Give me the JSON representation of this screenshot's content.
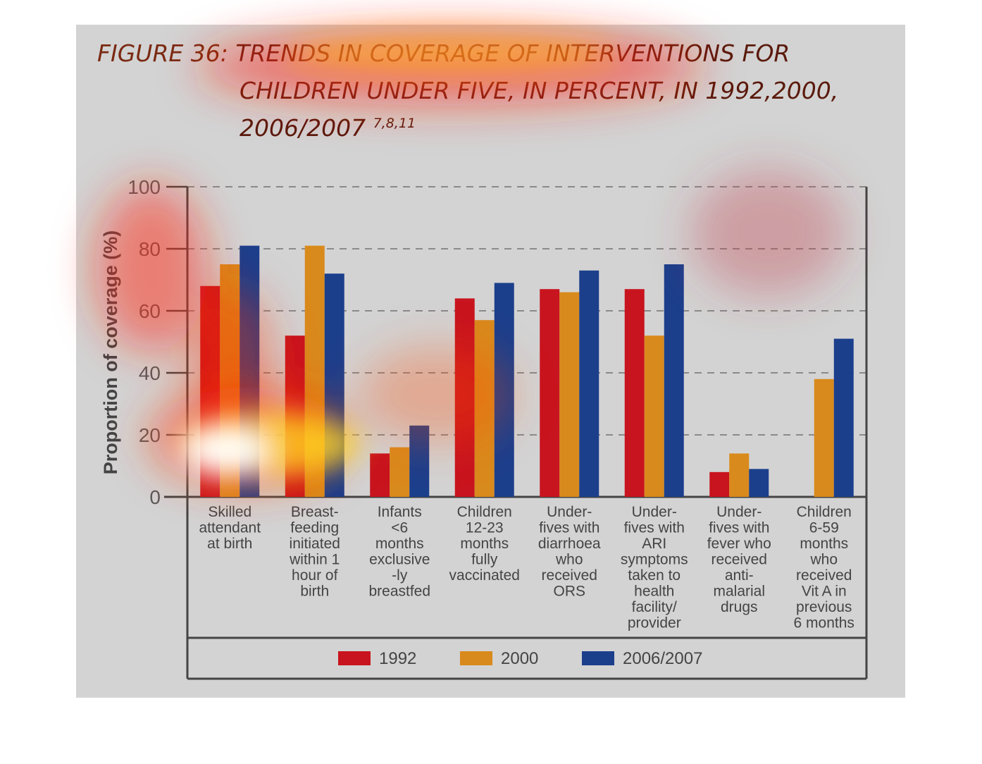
{
  "figure": {
    "label": "FIGURE 36:",
    "title_line1": "TRENDS IN COVERAGE OF INTERVENTIONS FOR",
    "title_line2": "CHILDREN UNDER FIVE, IN PERCENT, IN 1992,2000,",
    "title_line3": "2006/2007",
    "refs": "7,8,11"
  },
  "colors": {
    "s1992": "#c8141e",
    "s2000": "#d98a1c",
    "s2007": "#1c3f8c"
  },
  "chart_data": {
    "type": "bar",
    "ylabel": "Proportion of coverage (%)",
    "ylim": [
      0,
      100
    ],
    "yticks": [
      0,
      20,
      40,
      60,
      80,
      100
    ],
    "grid": true,
    "legend": "bottom",
    "categories": [
      [
        "Skilled",
        "attendant",
        "at birth"
      ],
      [
        "Breast-",
        "feeding",
        "initiated",
        "within 1",
        "hour of",
        "birth"
      ],
      [
        "Infants",
        "<6",
        "months",
        "exclusive",
        "-ly",
        "breastfed"
      ],
      [
        "Children",
        "12-23",
        "months",
        "fully",
        "vaccinated"
      ],
      [
        "Under-",
        "fives with",
        "diarrhoea",
        "who",
        "received",
        "ORS"
      ],
      [
        "Under-",
        "fives with",
        "ARI",
        "symptoms",
        "taken to",
        "health",
        "facility/",
        "provider"
      ],
      [
        "Under-",
        "fives with",
        "fever who",
        "received",
        "anti-",
        "malarial",
        "drugs"
      ],
      [
        "Children",
        "6-59",
        "months",
        "who",
        "received",
        "Vit A in",
        "previous",
        "6 months"
      ]
    ],
    "series": [
      {
        "name": "1992",
        "values": [
          68,
          52,
          14,
          64,
          67,
          67,
          8,
          null
        ]
      },
      {
        "name": "2000",
        "values": [
          75,
          81,
          16,
          57,
          66,
          52,
          14,
          38
        ]
      },
      {
        "name": "2006/2007",
        "values": [
          81,
          72,
          23,
          69,
          73,
          75,
          9,
          51
        ]
      }
    ]
  }
}
